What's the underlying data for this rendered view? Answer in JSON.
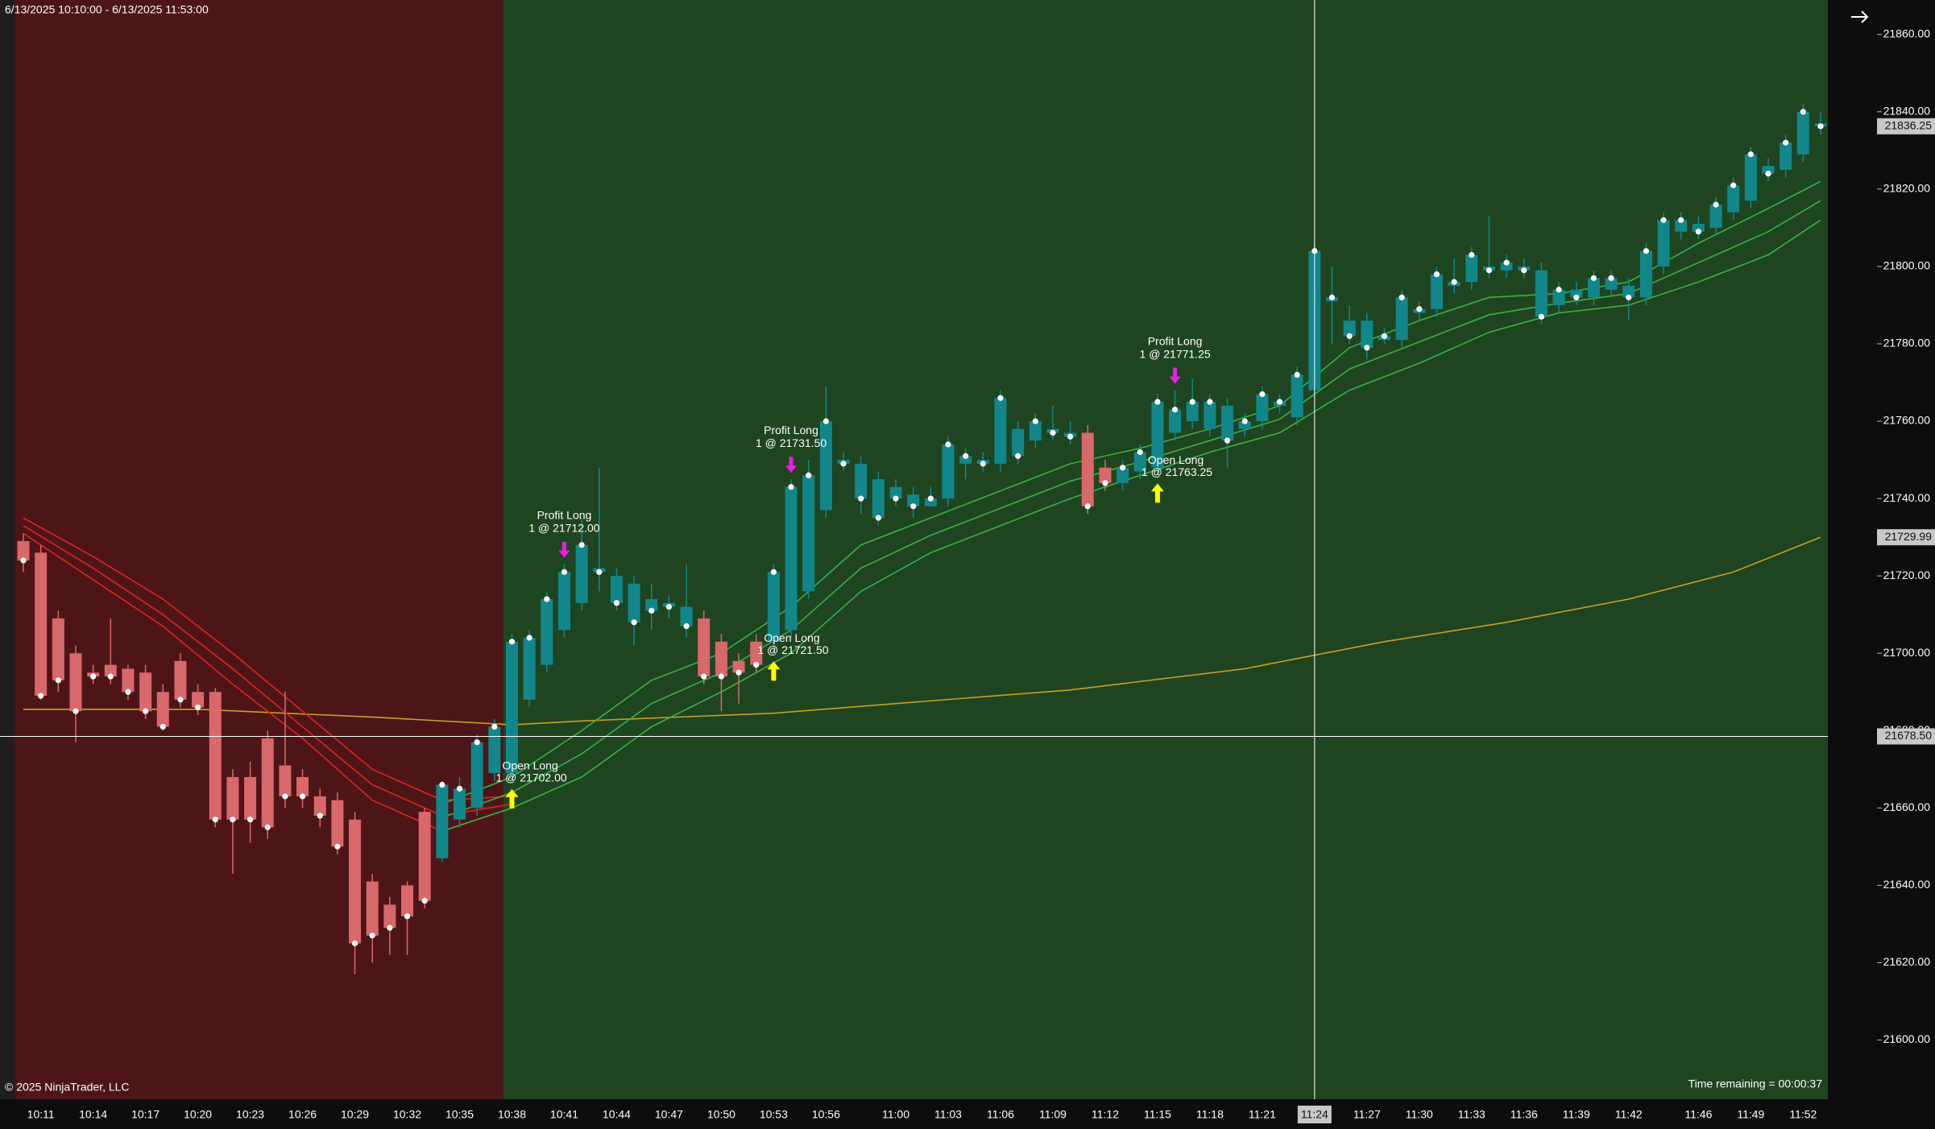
{
  "chart_data": {
    "type": "candlestick",
    "title": "6/13/2025 10:10:00 - 6/13/2025 11:53:00",
    "copyright": "© 2025 NinjaTrader, LLC",
    "status": "Time remaining = 00:00:37",
    "categories": [
      null,
      "10:11",
      null,
      null,
      "10:14",
      null,
      null,
      "10:17",
      null,
      null,
      "10:20",
      null,
      null,
      "10:23",
      null,
      null,
      "10:26",
      null,
      null,
      "10:29",
      null,
      null,
      "10:32",
      null,
      null,
      "10:35",
      null,
      null,
      "10:38",
      null,
      null,
      "10:41",
      null,
      null,
      "10:44",
      null,
      null,
      "10:47",
      null,
      null,
      "10:50",
      null,
      null,
      "10:53",
      null,
      null,
      "10:56",
      null,
      null,
      null,
      "11:00",
      null,
      null,
      "11:03",
      null,
      null,
      "11:06",
      null,
      null,
      "11:09",
      null,
      null,
      "11:12",
      null,
      null,
      "11:15",
      null,
      null,
      "11:18",
      null,
      null,
      "11:21",
      null,
      null,
      "11:24",
      null,
      null,
      "11:27",
      null,
      null,
      "11:30",
      null,
      null,
      "11:33",
      null,
      null,
      "11:36",
      null,
      null,
      "11:39",
      null,
      null,
      "11:42",
      null,
      null,
      null,
      "11:46",
      null,
      null,
      "11:49",
      null,
      null,
      "11:52",
      null
    ],
    "open": [
      21729,
      21726,
      21709,
      21700,
      21695,
      21697,
      21696,
      21695,
      21690,
      21698,
      21690,
      21690,
      21668,
      21668,
      21678,
      21671,
      21668,
      21663,
      21662,
      21657,
      21641,
      21635,
      21640,
      21659,
      21647,
      21657,
      21660,
      21669,
      21669,
      21688,
      21697,
      21706,
      21713,
      21722,
      21720,
      21718,
      21714,
      21713,
      21712,
      21709,
      21703,
      21698,
      21703,
      21703,
      21706,
      21716,
      21737,
      21750,
      21749,
      21745,
      21743,
      21741,
      21738,
      21740,
      21749,
      21750,
      21749,
      21758,
      21755,
      21758,
      21757,
      21757,
      21748,
      21744,
      21747,
      21748,
      21757,
      21760,
      21758,
      21764,
      21758,
      21760,
      21764,
      21761,
      21768,
      21791,
      21786,
      21786,
      21781,
      21781,
      21788,
      21789,
      21795,
      21796,
      21800,
      21799,
      21800,
      21799,
      21790,
      21794,
      21792,
      21794,
      21795,
      21792,
      21800,
      21809,
      21811,
      21810,
      21814,
      21817,
      21826,
      21825,
      21829,
      21837
    ],
    "high": [
      21731,
      21728,
      21711,
      21702,
      21697,
      21709,
      21697,
      21697,
      21692,
      21700,
      21692,
      21691,
      21670,
      21672,
      21680,
      21690,
      21670,
      21665,
      21664,
      21659,
      21643,
      21637,
      21641,
      21660,
      21667,
      21668,
      21679,
      21683,
      21705,
      21706,
      21716,
      21723,
      21735,
      21748,
      21722,
      21720,
      21718,
      21715,
      21723,
      21711,
      21705,
      21700,
      21705,
      21723,
      21745,
      21750,
      21769,
      21752,
      21751,
      21747,
      21745,
      21743,
      21743,
      21756,
      21753,
      21752,
      21768,
      21760,
      21762,
      21764,
      21760,
      21759,
      21750,
      21750,
      21754,
      21767,
      21768,
      21771,
      21767,
      21766,
      21762,
      21769,
      21767,
      21774,
      21806,
      21800,
      21790,
      21788,
      21784,
      21794,
      21791,
      21800,
      21802,
      21805,
      21813,
      21803,
      21802,
      21801,
      21796,
      21796,
      21799,
      21799,
      21797,
      21806,
      21814,
      21814,
      21813,
      21818,
      21823,
      21831,
      21828,
      21834,
      21842,
      21840
    ],
    "low": [
      21721,
      21688,
      21690,
      21677,
      21692,
      21692,
      21688,
      21683,
      21680,
      21686,
      21684,
      21655,
      21643,
      21651,
      21652,
      21660,
      21660,
      21655,
      21648,
      21617,
      21620,
      21622,
      21622,
      21634,
      21646,
      21655,
      21658,
      21667,
      21667,
      21686,
      21695,
      21704,
      21711,
      21716,
      21711,
      21702,
      21706,
      21709,
      21704,
      21692,
      21685,
      21687,
      21695,
      21700,
      21704,
      21714,
      21735,
      21747,
      21736,
      21733,
      21738,
      21735,
      21738,
      21738,
      21745,
      21747,
      21747,
      21749,
      21753,
      21755,
      21754,
      21736,
      21742,
      21742,
      21745,
      21746,
      21755,
      21758,
      21756,
      21748,
      21756,
      21758,
      21762,
      21759,
      21766,
      21780,
      21780,
      21776,
      21780,
      21779,
      21786,
      21787,
      21793,
      21794,
      21797,
      21797,
      21797,
      21785,
      21788,
      21790,
      21790,
      21792,
      21786,
      21790,
      21798,
      21807,
      21807,
      21808,
      21812,
      21815,
      21822,
      21823,
      21827,
      21834
    ],
    "close": [
      21724,
      21689,
      21693,
      21685,
      21694,
      21694,
      21690,
      21685,
      21681,
      21688,
      21686,
      21657,
      21657,
      21657,
      21655,
      21663,
      21663,
      21658,
      21650,
      21625,
      21627,
      21629,
      21632,
      21636,
      21666,
      21665,
      21677,
      21681,
      21703,
      21704,
      21714,
      21721,
      21728,
      21721,
      21713,
      21708,
      21711,
      21712,
      21707,
      21694,
      21694,
      21695,
      21697,
      21721,
      21743,
      21746,
      21760,
      21749,
      21740,
      21735,
      21740,
      21738,
      21740,
      21754,
      21751,
      21749,
      21766,
      21751,
      21760,
      21757,
      21756,
      21738,
      21744,
      21748,
      21752,
      21765,
      21763,
      21765,
      21765,
      21755,
      21760,
      21767,
      21765,
      21772,
      21804,
      21792,
      21782,
      21779,
      21782,
      21792,
      21789,
      21798,
      21796,
      21803,
      21799,
      21801,
      21799,
      21787,
      21794,
      21792,
      21797,
      21797,
      21792,
      21804,
      21812,
      21812,
      21809,
      21816,
      21821,
      21829,
      21824,
      21832,
      21840,
      21836.25
    ],
    "bar_colors": [
      "#d9686b",
      "#d9686b",
      "#d9686b",
      "#d9686b",
      "#d9686b",
      "#d9686b",
      "#d9686b",
      "#d9686b",
      "#d9686b",
      "#d9686b",
      "#d9686b",
      "#d9686b",
      "#d9686b",
      "#d9686b",
      "#d9686b",
      "#d9686b",
      "#d9686b",
      "#d9686b",
      "#d9686b",
      "#d9686b",
      "#d9686b",
      "#d9686b",
      "#d9686b",
      "#d9686b",
      "#11878c",
      "#11878c",
      "#11878c",
      "#11878c",
      "#11878c",
      "#11878c",
      "#11878c",
      "#11878c",
      "#11878c",
      "#11878c",
      "#11878c",
      "#11878c",
      "#11878c",
      "#11878c",
      "#11878c",
      "#d9686b",
      "#d9686b",
      "#d9686b",
      "#d9686b",
      "#11878c",
      "#11878c",
      "#11878c",
      "#11878c",
      "#11878c",
      "#11878c",
      "#11878c",
      "#11878c",
      "#11878c",
      "#11878c",
      "#11878c",
      "#11878c",
      "#11878c",
      "#11878c",
      "#11878c",
      "#11878c",
      "#11878c",
      "#11878c",
      "#d9686b",
      "#d9686b",
      "#11878c",
      "#11878c",
      "#11878c",
      "#11878c",
      "#11878c",
      "#11878c",
      "#11878c",
      "#11878c",
      "#11878c",
      "#11878c",
      "#11878c",
      "#11878c",
      "#11878c",
      "#11878c",
      "#11878c",
      "#11878c",
      "#11878c",
      "#11878c",
      "#11878c",
      "#11878c",
      "#11878c",
      "#11878c",
      "#11878c",
      "#11878c",
      "#11878c",
      "#11878c",
      "#11878c",
      "#11878c",
      "#11878c",
      "#11878c",
      "#11878c",
      "#11878c",
      "#11878c",
      "#11878c",
      "#11878c",
      "#11878c",
      "#11878c",
      "#11878c",
      "#11878c",
      "#11878c",
      "#11878c"
    ],
    "ylim": [
      21584.7,
      21868.9
    ],
    "yticks": [
      {
        "value": 21600,
        "label": "21600.00"
      },
      {
        "value": 21620,
        "label": "21620.00"
      },
      {
        "value": 21640,
        "label": "21640.00"
      },
      {
        "value": 21660,
        "label": "21660.00"
      },
      {
        "value": 21680,
        "label": "21680.00"
      },
      {
        "value": 21700,
        "label": "21700.00"
      },
      {
        "value": 21720,
        "label": "21720.00"
      },
      {
        "value": 21740,
        "label": "21740.00"
      },
      {
        "value": 21760,
        "label": "21760.00"
      },
      {
        "value": 21780,
        "label": "21780.00"
      },
      {
        "value": 21800,
        "label": "21800.00"
      },
      {
        "value": 21820,
        "label": "21820.00"
      },
      {
        "value": 21840,
        "label": "21840.00"
      },
      {
        "value": 21860,
        "label": "21860.00"
      }
    ],
    "regions": [
      {
        "from": 0,
        "to": 27,
        "color": "#4e1518"
      },
      {
        "from": 28,
        "to": 103,
        "color": "#1f4420"
      }
    ],
    "overlays": [
      {
        "color": "#c9a227",
        "x": [
          0,
          10,
          20,
          28,
          32,
          43,
          50,
          60,
          70,
          78,
          85,
          92,
          98,
          103
        ],
        "values": [
          21685.5,
          21685.5,
          21683.5,
          21681.5,
          21682.5,
          21684.5,
          21687,
          21690.5,
          21696,
          21703,
          21708,
          21714,
          21721,
          21729.99
        ]
      },
      {
        "color": "#e02222",
        "x": [
          0,
          4,
          8,
          12,
          16,
          20,
          24,
          28
        ],
        "values": [
          21735,
          21725,
          21714,
          21700,
          21685,
          21670,
          21662,
          21663
        ]
      },
      {
        "color": "#e02222",
        "x": [
          0,
          4,
          8,
          12,
          16,
          20,
          24,
          28
        ],
        "values": [
          21733,
          21722,
          21710,
          21696,
          21681,
          21666,
          21658,
          21661
        ]
      },
      {
        "color": "#e02222",
        "x": [
          0,
          4,
          8,
          12,
          16,
          20,
          24,
          28
        ],
        "values": [
          21731,
          21719,
          21707,
          21692,
          21678,
          21662,
          21654,
          21660
        ]
      },
      {
        "color": "#3cb043",
        "x": [
          24,
          28,
          32,
          36,
          40,
          44,
          48,
          52,
          56,
          60,
          64,
          68,
          72,
          76,
          80,
          84,
          88,
          92,
          96,
          100,
          103
        ],
        "values": [
          21661,
          21668,
          21680,
          21693,
          21700,
          21712,
          21728,
          21735,
          21742,
          21749,
          21753,
          21758,
          21764,
          21779,
          21786,
          21792,
          21793,
          21796,
          21806,
          21815,
          21822
        ]
      },
      {
        "color": "#3cb043",
        "x": [
          24,
          28,
          32,
          36,
          40,
          44,
          48,
          52,
          56,
          60,
          64,
          68,
          72,
          76,
          80,
          84,
          88,
          92,
          96,
          100,
          103
        ],
        "values": [
          21657.5,
          21664,
          21674,
          21687,
          21695,
          21706,
          21722,
          21730.5,
          21737.5,
          21744.5,
          21749.5,
          21755,
          21760.5,
          21773.5,
          21780.5,
          21787.5,
          21790.5,
          21793,
          21801,
          21809,
          21817
        ]
      },
      {
        "color": "#3cb043",
        "x": [
          24,
          28,
          32,
          36,
          40,
          44,
          48,
          52,
          56,
          60,
          64,
          68,
          72,
          76,
          80,
          84,
          88,
          92,
          96,
          100,
          103
        ],
        "values": [
          21654,
          21660,
          21668,
          21681,
          21690,
          21700,
          21716,
          21726,
          21733,
          21740,
          21746,
          21752,
          21757,
          21768,
          21775,
          21783,
          21788,
          21790,
          21796,
          21803,
          21812
        ]
      }
    ],
    "price_labels": [
      {
        "value": 21836.25,
        "label": "21836.25"
      },
      {
        "value": 21729.99,
        "label": "21729.99"
      }
    ],
    "crosshair": {
      "x": "11:24",
      "y": {
        "value": 21678.5,
        "label": "21678.50"
      }
    },
    "trades": [
      {
        "label": "Open Long",
        "detail": "1 @ 21702.00",
        "index": 28,
        "arrow": "up",
        "color": "#ffff00"
      },
      {
        "label": "Profit Long",
        "detail": "1 @ 21712.00",
        "index": 31,
        "arrow": "down",
        "color": "#e91ee9"
      },
      {
        "label": "Open Long",
        "detail": "1 @ 21721.50",
        "index": 43,
        "arrow": "up",
        "color": "#ffff00"
      },
      {
        "label": "Profit Long",
        "detail": "1 @ 21731.50",
        "index": 44,
        "arrow": "down",
        "color": "#e91ee9"
      },
      {
        "label": "Open Long",
        "detail": "1 @ 21763.25",
        "index": 65,
        "arrow": "up",
        "color": "#ffff00"
      },
      {
        "label": "Profit Long",
        "detail": "1 @ 21771.25",
        "index": 66,
        "arrow": "down",
        "color": "#e91ee9"
      }
    ]
  }
}
